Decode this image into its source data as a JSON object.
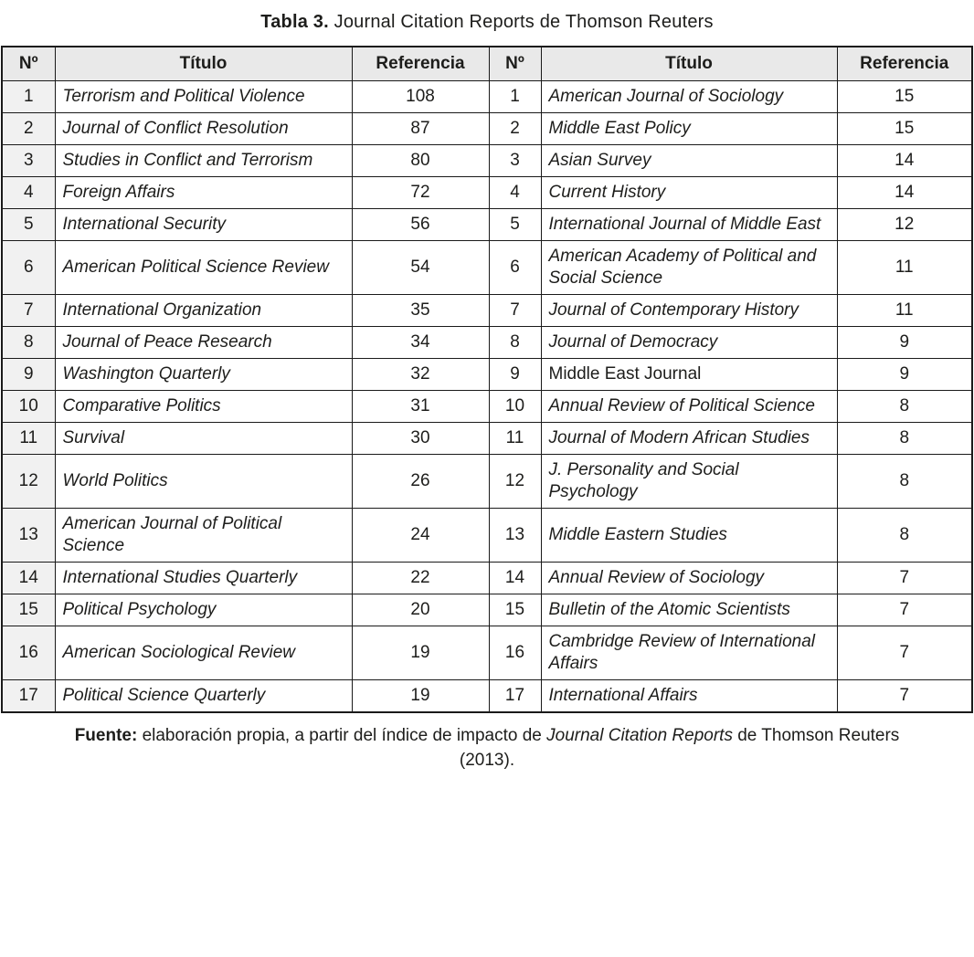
{
  "title": {
    "label": "Tabla 3.",
    "text": " Journal Citation Reports de Thomson Reuters"
  },
  "colors": {
    "border": "#1a1a1a",
    "header_bg": "#e9e9e9",
    "num_column_bg": "#f1f1f1",
    "text": "#1d1d1b"
  },
  "table": {
    "headers": [
      "Nº",
      "Título",
      "Referencia",
      "Nº",
      "Título",
      "Referencia"
    ],
    "rows": [
      {
        "n1": "1",
        "t1": "Terrorism and Political Violence",
        "r1": "108",
        "n2": "1",
        "t2": "American Journal of Sociology",
        "r2": "15"
      },
      {
        "n1": "2",
        "t1": "Journal of Conflict Resolution",
        "r1": "87",
        "n2": "2",
        "t2": "Middle East Policy",
        "r2": "15"
      },
      {
        "n1": "3",
        "t1": "Studies in Conflict and Terrorism",
        "r1": "80",
        "n2": "3",
        "t2": "Asian Survey",
        "r2": "14",
        "tall": true
      },
      {
        "n1": "4",
        "t1": "Foreign Affairs",
        "r1": "72",
        "n2": "4",
        "t2": "Current History",
        "r2": "14"
      },
      {
        "n1": "5",
        "t1": "International Security",
        "r1": "56",
        "n2": "5",
        "t2": "International Journal of Middle East",
        "r2": "12",
        "tall": true
      },
      {
        "n1": "6",
        "t1": "American Political Science Review",
        "r1": "54",
        "n2": "6",
        "t2": "American Academy of Political and Social Science",
        "r2": "11",
        "tall": true
      },
      {
        "n1": "7",
        "t1": "International Organization",
        "r1": "35",
        "n2": "7",
        "t2": "Journal of Contemporary History",
        "r2": "11",
        "tall": true
      },
      {
        "n1": "8",
        "t1": "Journal of Peace Research",
        "r1": "34",
        "n2": "8",
        "t2": "Journal of Democracy",
        "r2": "9"
      },
      {
        "n1": "9",
        "t1": "Washington Quarterly",
        "r1": "32",
        "n2": "9",
        "t2": "Middle East Journal",
        "r2": "9",
        "t2_italic": false
      },
      {
        "n1": "10",
        "t1": "Comparative Politics",
        "r1": "31",
        "n2": "10",
        "t2": "Annual Review of Political Science",
        "r2": "8",
        "tall": true
      },
      {
        "n1": "11",
        "t1": "Survival",
        "r1": "30",
        "n2": "11",
        "t2": "Journal of Modern African Studies",
        "r2": "8",
        "tall": true
      },
      {
        "n1": "12",
        "t1": "World Politics",
        "r1": "26",
        "n2": "12",
        "t2": "J. Personality and Social Psychology",
        "r2": "8",
        "tall": true
      },
      {
        "n1": "13",
        "t1": "American Journal of Political Science",
        "r1": "24",
        "n2": "13",
        "t2": "Middle Eastern Studies",
        "r2": "8",
        "tall": true
      },
      {
        "n1": "14",
        "t1": "International Studies Quarterly",
        "r1": "22",
        "n2": "14",
        "t2": "Annual Review of Sociology",
        "r2": "7"
      },
      {
        "n1": "15",
        "t1": "Political Psychology",
        "r1": "20",
        "n2": "15",
        "t2": "Bulletin of the Atomic Scientists",
        "r2": "7"
      },
      {
        "n1": "16",
        "t1": "American Sociological Review",
        "r1": "19",
        "n2": "16",
        "t2": "Cambridge Review of International Affairs",
        "r2": "7",
        "tall": true
      },
      {
        "n1": "17",
        "t1": "Political Science Quarterly",
        "r1": "19",
        "n2": "17",
        "t2": "International Affairs",
        "r2": "7"
      }
    ]
  },
  "footer": {
    "label": "Fuente:",
    "text_before": " elaboración propia, a partir del índice de impacto de ",
    "italic_text": "Journal Citation Reports",
    "text_after": " de Thomson Reuters",
    "line2": "(2013)."
  }
}
